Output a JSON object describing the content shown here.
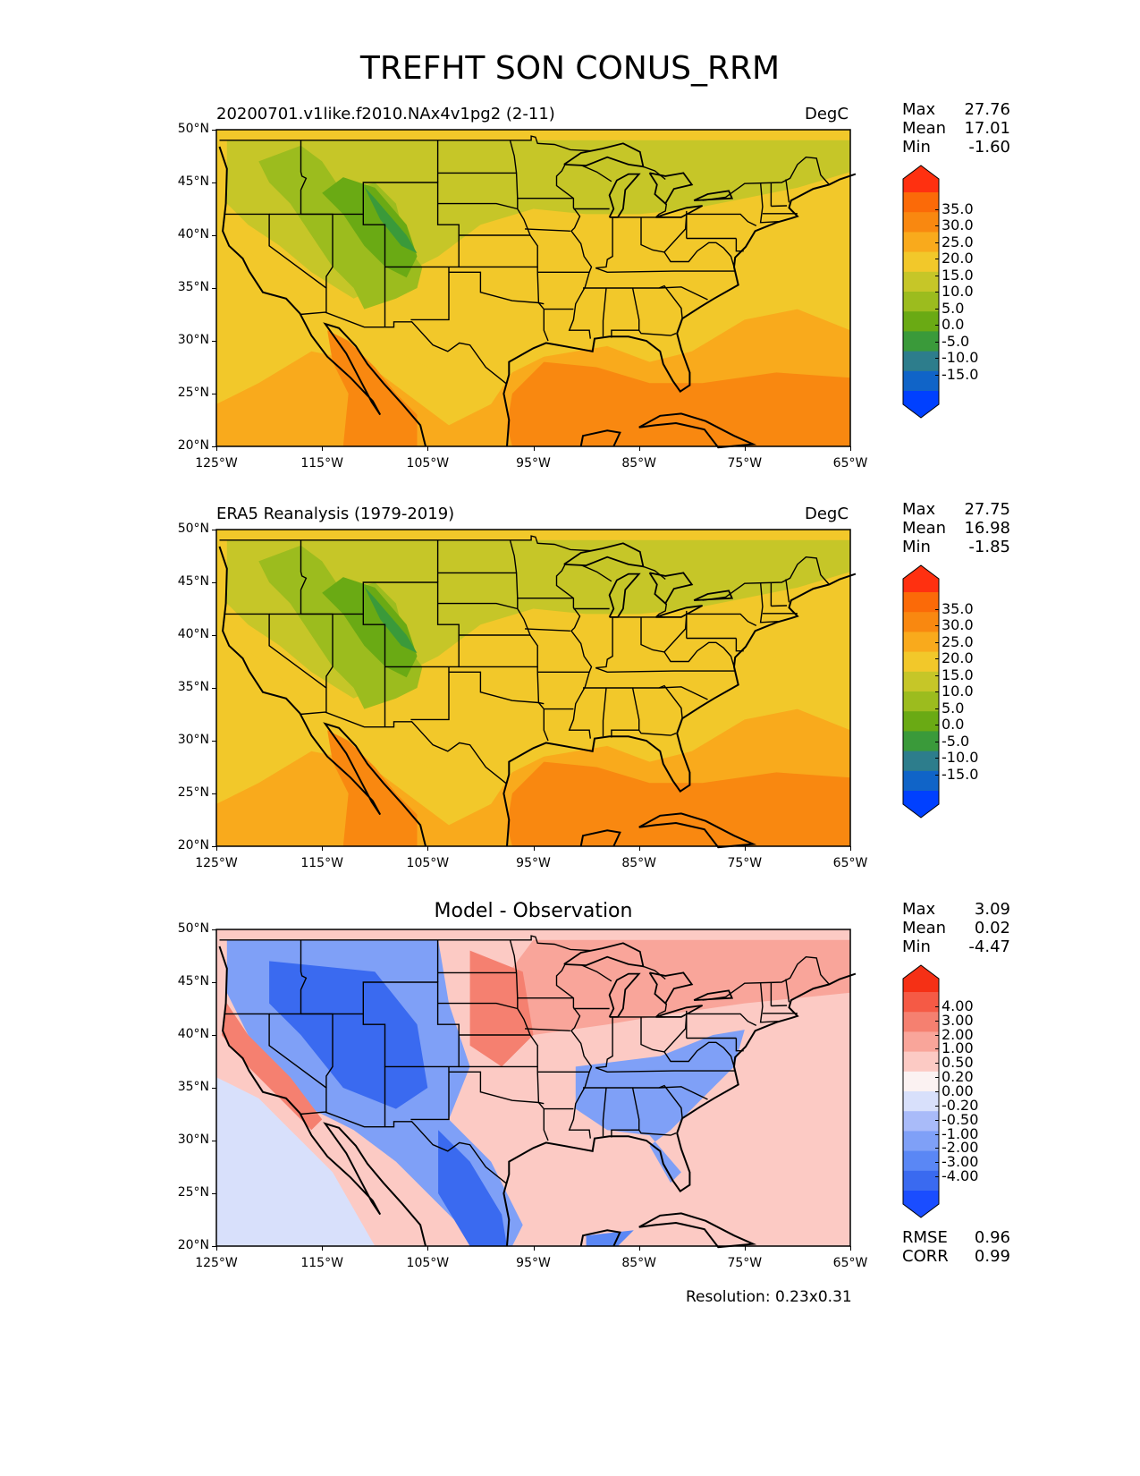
{
  "figure_title": "TREFHT SON CONUS_RRM",
  "lat_ticks": [
    "50°N",
    "45°N",
    "40°N",
    "35°N",
    "30°N",
    "25°N",
    "20°N"
  ],
  "lon_ticks": [
    "125°W",
    "115°W",
    "105°W",
    "95°W",
    "85°W",
    "75°W",
    "65°W"
  ],
  "map_extent": {
    "lon": [
      -125,
      -65
    ],
    "lat": [
      20,
      50
    ]
  },
  "colors": {
    "temp_levels": [
      "#0040ff",
      "#1064c8",
      "#2d7d8c",
      "#3a9a3a",
      "#6aaa14",
      "#9cbc1e",
      "#c6c628",
      "#f2c82a",
      "#f9aa1c",
      "#f98810",
      "#fb6a08",
      "#ff3010"
    ],
    "diff_levels": [
      "#1a4dff",
      "#3a6af0",
      "#5a87f5",
      "#7fa0f7",
      "#a9bbf9",
      "#d8e0fb",
      "#fbf2f2",
      "#fccac4",
      "#f9a59a",
      "#f58070",
      "#f55a45",
      "#f53015"
    ]
  },
  "panels": [
    {
      "id": "model",
      "left_title": "20200701.v1like.f2010.NAx4v1pg2 (2-11)",
      "right_title": "DegC",
      "center_title": "",
      "stats": [
        {
          "label": "Max",
          "value": "27.76"
        },
        {
          "label": "Mean",
          "value": "17.01"
        },
        {
          "label": "Min",
          "value": "-1.60"
        }
      ],
      "colorbar_labels": [
        "35.0",
        "30.0",
        "25.0",
        "20.0",
        "15.0",
        "10.0",
        "5.0",
        "0.0",
        "-5.0",
        "-10.0",
        "-15.0"
      ],
      "extra_stats": []
    },
    {
      "id": "obs",
      "left_title": "ERA5 Reanalysis (1979-2019)",
      "right_title": "DegC",
      "center_title": "",
      "stats": [
        {
          "label": "Max",
          "value": "27.75"
        },
        {
          "label": "Mean",
          "value": "16.98"
        },
        {
          "label": "Min",
          "value": "-1.85"
        }
      ],
      "colorbar_labels": [
        "35.0",
        "30.0",
        "25.0",
        "20.0",
        "15.0",
        "10.0",
        "5.0",
        "0.0",
        "-5.0",
        "-10.0",
        "-15.0"
      ],
      "extra_stats": []
    },
    {
      "id": "diff",
      "left_title": "",
      "right_title": "",
      "center_title": "Model - Observation",
      "stats": [
        {
          "label": "Max",
          "value": "3.09"
        },
        {
          "label": "Mean",
          "value": "0.02"
        },
        {
          "label": "Min",
          "value": "-4.47"
        }
      ],
      "colorbar_labels": [
        "4.00",
        "3.00",
        "2.00",
        "1.00",
        "0.50",
        "0.20",
        "0.00",
        "-0.20",
        "-0.50",
        "-1.00",
        "-2.00",
        "-3.00",
        "-4.00"
      ],
      "extra_stats": [
        {
          "label": "RMSE",
          "value": "0.96"
        },
        {
          "label": "CORR",
          "value": "0.99"
        }
      ]
    }
  ],
  "footer": "Resolution: 0.23x0.31"
}
